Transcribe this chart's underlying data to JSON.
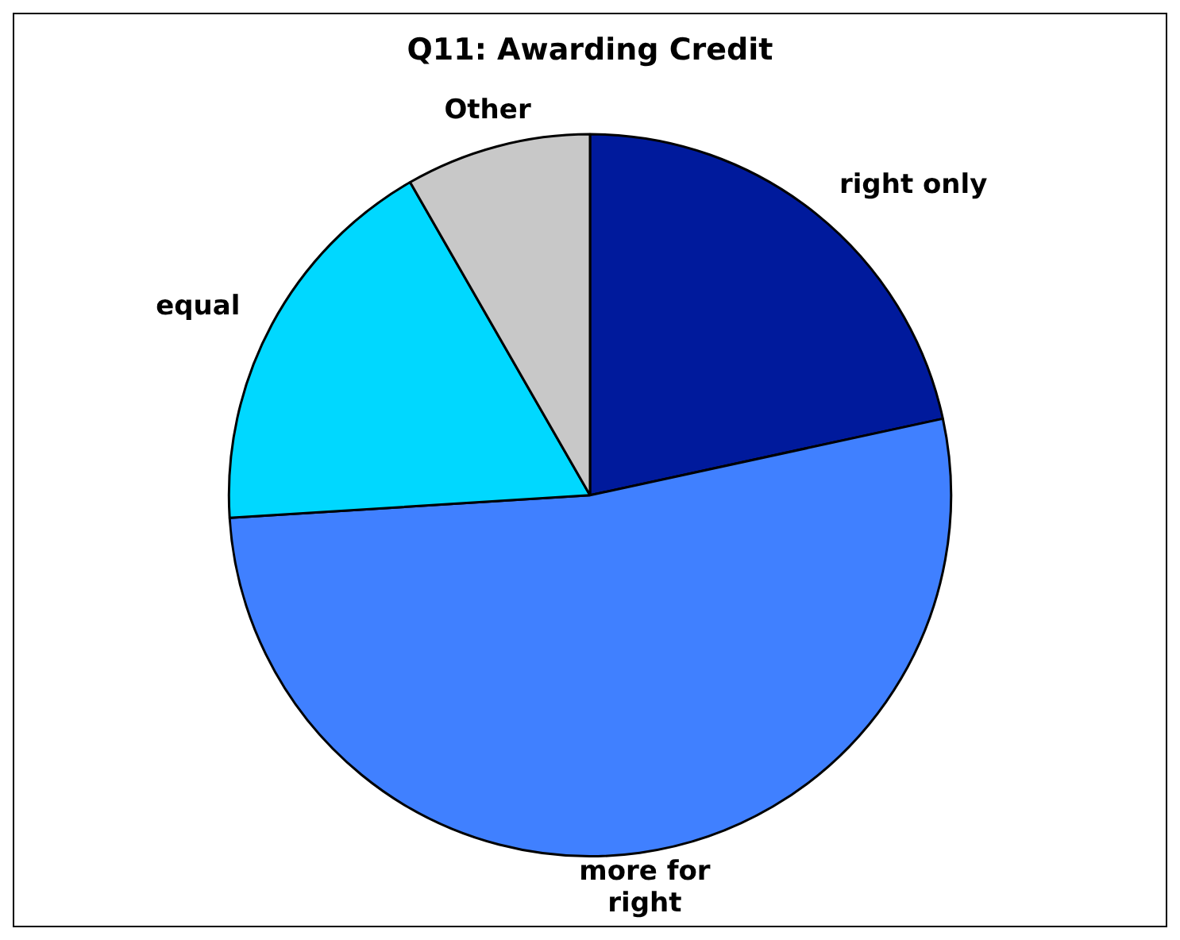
{
  "chart_data": {
    "type": "pie",
    "title": "Q11: Awarding Credit",
    "categories": [
      "right only",
      "more for right",
      "equal",
      "Other"
    ],
    "values": [
      21.6,
      52.4,
      17.7,
      8.3
    ],
    "colors": [
      "#001a9c",
      "#4080ff",
      "#00d8ff",
      "#c8c8c8"
    ],
    "legend": false
  }
}
